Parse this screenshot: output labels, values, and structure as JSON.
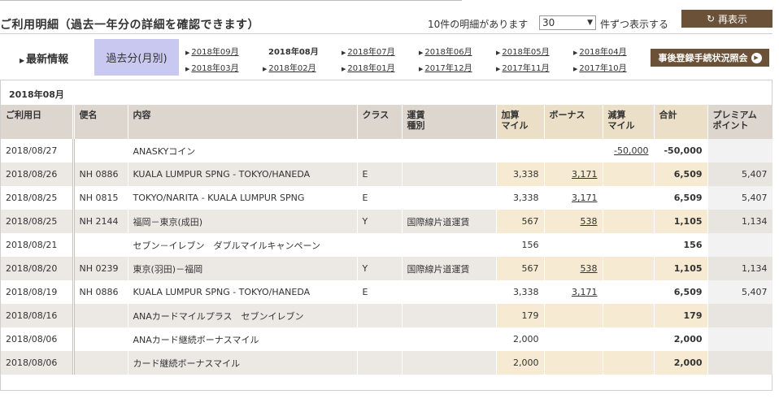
{
  "header": {
    "title": "ご利用明細（過去一年分の詳細を確認できます）",
    "count_text": "10件の明細があります",
    "per_page_value": "30",
    "per_page_suffix": "件ずつ表示する",
    "refresh_label": "再表示"
  },
  "nav": {
    "latest_label": "最新情報",
    "past_label": "過去分(月別)",
    "months_row1": [
      "2018年09月",
      "2018年08月",
      "2018年07月",
      "2018年06月",
      "2018年05月",
      "2018年04月"
    ],
    "months_row2": [
      "2018年03月",
      "2018年02月",
      "2018年01月",
      "2017年12月",
      "2017年11月",
      "2017年10月"
    ],
    "current_month": "2018年08月",
    "status_button_label": "事後登録手続状況照会"
  },
  "table": {
    "month_heading": "2018年08月",
    "headers": {
      "date": "ご利用日",
      "flight": "便名",
      "content": "内容",
      "class": "クラス",
      "fare_line1": "運賃",
      "fare_line2": "種別",
      "earn_line1": "加算",
      "earn_line2": "マイル",
      "bonus": "ボーナス",
      "reduce_line1": "減算",
      "reduce_line2": "マイル",
      "total": "合計",
      "premium_line1": "プレミアム",
      "premium_line2": "ポイント"
    },
    "rows": [
      {
        "date": "2018/08/27",
        "flight": "",
        "content": "ANASKYコイン",
        "cls": "",
        "fare": "",
        "earn": "",
        "bonus": "",
        "reduce": "-50,000",
        "total": "-50,000",
        "premium": ""
      },
      {
        "date": "2018/08/26",
        "flight": "NH 0886",
        "content": "KUALA LUMPUR SPNG - TOKYO/HANEDA",
        "cls": "E",
        "fare": "",
        "earn": "3,338",
        "bonus": "3,171",
        "reduce": "",
        "total": "6,509",
        "premium": "5,407"
      },
      {
        "date": "2018/08/25",
        "flight": "NH 0815",
        "content": "TOKYO/NARITA - KUALA LUMPUR SPNG",
        "cls": "E",
        "fare": "",
        "earn": "3,338",
        "bonus": "3,171",
        "reduce": "",
        "total": "6,509",
        "premium": "5,407"
      },
      {
        "date": "2018/08/25",
        "flight": "NH 2144",
        "content": "福岡－東京(成田)",
        "cls": "Y",
        "fare": "国際線片道運賃",
        "earn": "567",
        "bonus": "538",
        "reduce": "",
        "total": "1,105",
        "premium": "1,134"
      },
      {
        "date": "2018/08/21",
        "flight": "",
        "content": "セブン－イレブン　ダブルマイルキャンペーン",
        "cls": "",
        "fare": "",
        "earn": "156",
        "bonus": "",
        "reduce": "",
        "total": "156",
        "premium": ""
      },
      {
        "date": "2018/08/20",
        "flight": "NH 0239",
        "content": "東京(羽田)－福岡",
        "cls": "Y",
        "fare": "国際線片道運賃",
        "earn": "567",
        "bonus": "538",
        "reduce": "",
        "total": "1,105",
        "premium": "1,134"
      },
      {
        "date": "2018/08/19",
        "flight": "NH 0886",
        "content": "KUALA LUMPUR SPNG - TOKYO/HANEDA",
        "cls": "E",
        "fare": "",
        "earn": "3,338",
        "bonus": "3,171",
        "reduce": "",
        "total": "6,509",
        "premium": "5,407"
      },
      {
        "date": "2018/08/16",
        "flight": "",
        "content": "ANAカードマイルプラス　セブンイレブン",
        "cls": "",
        "fare": "",
        "earn": "179",
        "bonus": "",
        "reduce": "",
        "total": "179",
        "premium": ""
      },
      {
        "date": "2018/08/06",
        "flight": "",
        "content": "ANAカード継続ボーナスマイル",
        "cls": "",
        "fare": "",
        "earn": "2,000",
        "bonus": "",
        "reduce": "",
        "total": "2,000",
        "premium": ""
      },
      {
        "date": "2018/08/06",
        "flight": "",
        "content": "カード継続ボーナスマイル",
        "cls": "",
        "fare": "",
        "earn": "2,000",
        "bonus": "",
        "reduce": "",
        "total": "2,000",
        "premium": ""
      }
    ]
  }
}
